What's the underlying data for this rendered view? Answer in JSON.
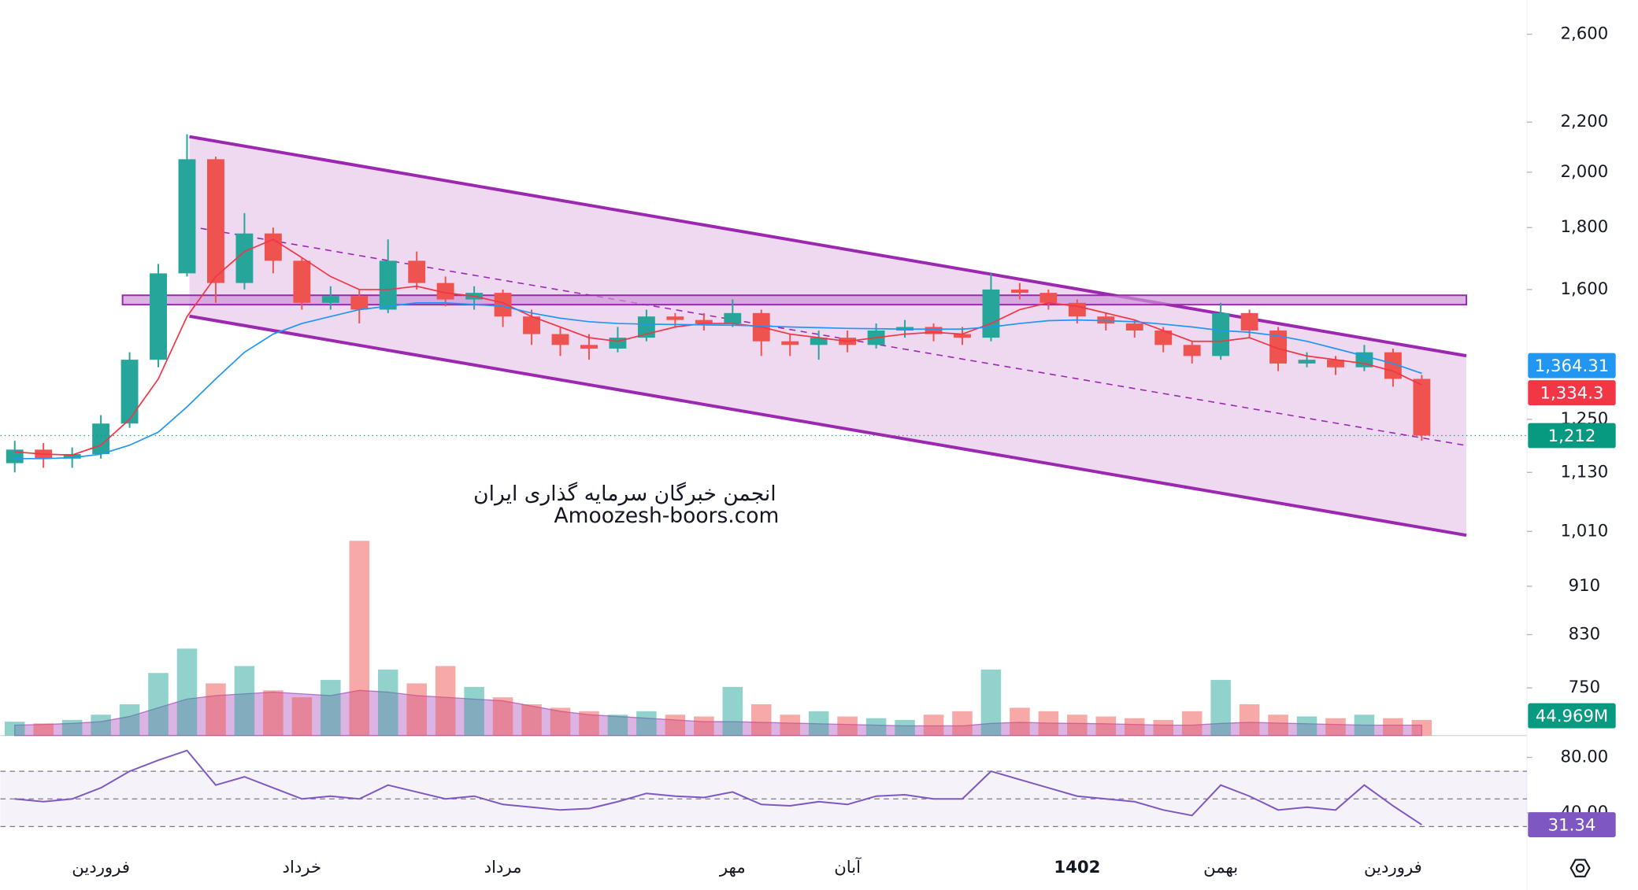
{
  "chart_data": {
    "type": "candlestick",
    "log_scale": true,
    "ylim": [
      685,
      2775
    ],
    "yticks": [
      {
        "value": 2600,
        "label": "2,600"
      },
      {
        "value": 2200,
        "label": "2,200"
      },
      {
        "value": 2000,
        "label": "2,000"
      },
      {
        "value": 1800,
        "label": "1,800"
      },
      {
        "value": 1600,
        "label": "1,600"
      },
      {
        "value": 1250,
        "label": "1,250"
      },
      {
        "value": 1130,
        "label": "1,130"
      },
      {
        "value": 1010,
        "label": "1,010"
      },
      910,
      830,
      750
    ],
    "categories": [
      null,
      null,
      null,
      "فروردین",
      null,
      null,
      null,
      null,
      null,
      null,
      "خرداد",
      null,
      null,
      null,
      null,
      null,
      null,
      "مرداد",
      null,
      null,
      null,
      null,
      null,
      null,
      null,
      "مهر",
      null,
      null,
      null,
      "آبان",
      null,
      null,
      null,
      null,
      null,
      null,
      null,
      "1402",
      null,
      null,
      null,
      null,
      "بهمن",
      null,
      null,
      null,
      null,
      null,
      "فروردین",
      null
    ],
    "up_color": "#26a69a",
    "down_color": "#ef5350",
    "open": [
      1150,
      1180,
      1160,
      1170,
      1240,
      1400,
      1650,
      2050,
      1620,
      1780,
      1690,
      1560,
      1580,
      1540,
      1690,
      1620,
      1570,
      1590,
      1520,
      1470,
      1440,
      1430,
      1460,
      1520,
      1510,
      1500,
      1530,
      1450,
      1440,
      1460,
      1440,
      1480,
      1490,
      1470,
      1460,
      1600,
      1590,
      1560,
      1520,
      1500,
      1480,
      1440,
      1410,
      1530,
      1480,
      1390,
      1400,
      1380,
      1420,
      1350
    ],
    "high": [
      1200,
      1195,
      1185,
      1260,
      1420,
      1680,
      2150,
      2060,
      1850,
      1800,
      1700,
      1610,
      1600,
      1760,
      1720,
      1640,
      1610,
      1600,
      1540,
      1490,
      1470,
      1490,
      1540,
      1530,
      1530,
      1570,
      1540,
      1470,
      1480,
      1480,
      1500,
      1510,
      1500,
      1490,
      1650,
      1620,
      1600,
      1570,
      1530,
      1510,
      1490,
      1450,
      1560,
      1540,
      1490,
      1420,
      1410,
      1440,
      1430,
      1360
    ],
    "low": [
      1130,
      1140,
      1140,
      1160,
      1230,
      1380,
      1640,
      1560,
      1600,
      1650,
      1540,
      1540,
      1500,
      1530,
      1600,
      1550,
      1540,
      1490,
      1440,
      1410,
      1400,
      1420,
      1450,
      1490,
      1480,
      1490,
      1410,
      1410,
      1400,
      1420,
      1430,
      1460,
      1450,
      1440,
      1450,
      1570,
      1540,
      1500,
      1480,
      1460,
      1420,
      1390,
      1400,
      1460,
      1370,
      1380,
      1360,
      1370,
      1330,
      1200
    ],
    "close": [
      1180,
      1160,
      1170,
      1240,
      1400,
      1650,
      2050,
      1620,
      1780,
      1690,
      1560,
      1580,
      1540,
      1690,
      1620,
      1570,
      1590,
      1520,
      1470,
      1440,
      1430,
      1460,
      1520,
      1510,
      1500,
      1530,
      1450,
      1440,
      1460,
      1440,
      1480,
      1490,
      1470,
      1460,
      1600,
      1590,
      1560,
      1520,
      1500,
      1480,
      1440,
      1410,
      1530,
      1480,
      1390,
      1400,
      1380,
      1420,
      1350,
      1212
    ],
    "close_labels": [
      null,
      null,
      null,
      null,
      null,
      null,
      null,
      null,
      null,
      null,
      null,
      null,
      null,
      null,
      null,
      null,
      null,
      null,
      null,
      null,
      null,
      null,
      null,
      null,
      null,
      null,
      null,
      null,
      null,
      null,
      null,
      null,
      null,
      null,
      null,
      null,
      null,
      null,
      null,
      null,
      null,
      null,
      null,
      null,
      null,
      null,
      null,
      null,
      null,
      "1,212"
    ],
    "last_color": "#089981",
    "series": [
      {
        "color": "#f23645",
        "values": [
          1175,
          1170,
          1168,
          1190,
          1250,
          1350,
          1520,
          1640,
          1720,
          1760,
          1700,
          1640,
          1600,
          1600,
          1610,
          1590,
          1580,
          1560,
          1520,
          1490,
          1460,
          1450,
          1470,
          1490,
          1500,
          1500,
          1490,
          1470,
          1460,
          1450,
          1460,
          1470,
          1475,
          1470,
          1500,
          1540,
          1560,
          1550,
          1530,
          1510,
          1480,
          1450,
          1450,
          1460,
          1430,
          1410,
          1400,
          1390,
          1370,
          1334.3
        ],
        "value_labels": [
          null,
          null,
          null,
          null,
          null,
          null,
          null,
          null,
          null,
          null,
          null,
          null,
          null,
          null,
          null,
          null,
          null,
          null,
          null,
          null,
          null,
          null,
          null,
          null,
          null,
          null,
          null,
          null,
          null,
          null,
          null,
          null,
          null,
          null,
          null,
          null,
          null,
          null,
          null,
          null,
          null,
          null,
          null,
          null,
          null,
          null,
          null,
          null,
          null,
          "1,334.3"
        ]
      },
      {
        "color": "#2196f3",
        "values": [
          1160,
          1160,
          1162,
          1170,
          1190,
          1220,
          1280,
          1350,
          1420,
          1470,
          1500,
          1520,
          1540,
          1550,
          1560,
          1560,
          1555,
          1550,
          1530,
          1515,
          1505,
          1500,
          1498,
          1497,
          1496,
          1495,
          1493,
          1490,
          1488,
          1486,
          1485,
          1484,
          1484,
          1484,
          1490,
          1500,
          1508,
          1510,
          1508,
          1505,
          1498,
          1490,
          1480,
          1475,
          1465,
          1450,
          1430,
          1410,
          1390,
          1364.31
        ],
        "value_labels": [
          null,
          null,
          null,
          null,
          null,
          null,
          null,
          null,
          null,
          null,
          null,
          null,
          null,
          null,
          null,
          null,
          null,
          null,
          null,
          null,
          null,
          null,
          null,
          null,
          null,
          null,
          null,
          null,
          null,
          null,
          null,
          null,
          null,
          null,
          null,
          null,
          null,
          null,
          null,
          null,
          null,
          null,
          null,
          null,
          null,
          null,
          null,
          null,
          null,
          "1,364.31"
        ]
      }
    ],
    "volume": {
      "ylim": [
        0,
        570
      ],
      "ma_color": "#9c27b0",
      "values": [
        40,
        35,
        45,
        60,
        90,
        180,
        250,
        150,
        200,
        130,
        110,
        160,
        560,
        190,
        150,
        200,
        140,
        110,
        90,
        80,
        70,
        60,
        70,
        60,
        55,
        140,
        90,
        60,
        70,
        55,
        50,
        45,
        60,
        70,
        190,
        80,
        70,
        60,
        55,
        50,
        45,
        70,
        160,
        90,
        60,
        55,
        50,
        60,
        50,
        44.969
      ],
      "value_labels": [
        null,
        null,
        null,
        null,
        null,
        null,
        null,
        null,
        null,
        null,
        null,
        null,
        null,
        null,
        null,
        null,
        null,
        null,
        null,
        null,
        null,
        null,
        null,
        null,
        null,
        null,
        null,
        null,
        null,
        null,
        null,
        null,
        null,
        null,
        null,
        null,
        null,
        null,
        null,
        null,
        null,
        null,
        null,
        null,
        null,
        null,
        null,
        null,
        null,
        "44.969M"
      ],
      "ma": [
        30,
        32,
        35,
        40,
        55,
        80,
        105,
        115,
        120,
        125,
        120,
        115,
        130,
        125,
        115,
        110,
        105,
        100,
        85,
        70,
        60,
        55,
        50,
        45,
        40,
        40,
        38,
        36,
        34,
        32,
        30,
        28,
        28,
        28,
        35,
        38,
        36,
        35,
        34,
        32,
        30,
        30,
        35,
        38,
        36,
        34,
        32,
        30,
        30,
        30
      ]
    },
    "rsi": {
      "color": "#7e57c2",
      "ylim": [
        12.8,
        95.8
      ],
      "yticks": [
        {
          "value": 80,
          "label": "80.00"
        },
        {
          "value": 40,
          "label": "40.00"
        }
      ],
      "levels": [
        70,
        50,
        30
      ],
      "values": [
        50,
        48,
        50,
        58,
        70,
        78,
        85,
        60,
        66,
        58,
        50,
        52,
        50,
        60,
        55,
        50,
        52,
        46,
        44,
        42,
        43,
        48,
        54,
        52,
        51,
        55,
        46,
        45,
        48,
        46,
        52,
        53,
        50,
        50,
        70,
        64,
        58,
        52,
        50,
        48,
        42,
        38,
        60,
        52,
        42,
        44,
        42,
        60,
        45,
        31.34
      ],
      "value_labels": [
        null,
        null,
        null,
        null,
        null,
        null,
        null,
        null,
        null,
        null,
        null,
        null,
        null,
        null,
        null,
        null,
        null,
        null,
        null,
        null,
        null,
        null,
        null,
        null,
        null,
        null,
        null,
        null,
        null,
        null,
        null,
        null,
        null,
        null,
        null,
        null,
        null,
        null,
        null,
        null,
        null,
        null,
        null,
        null,
        null,
        null,
        null,
        null,
        null,
        "31.34"
      ]
    },
    "watermark": [
      "انجمن خبرگان سرمایه گذاری ایران",
      "Amoozesh-boors.com"
    ]
  }
}
